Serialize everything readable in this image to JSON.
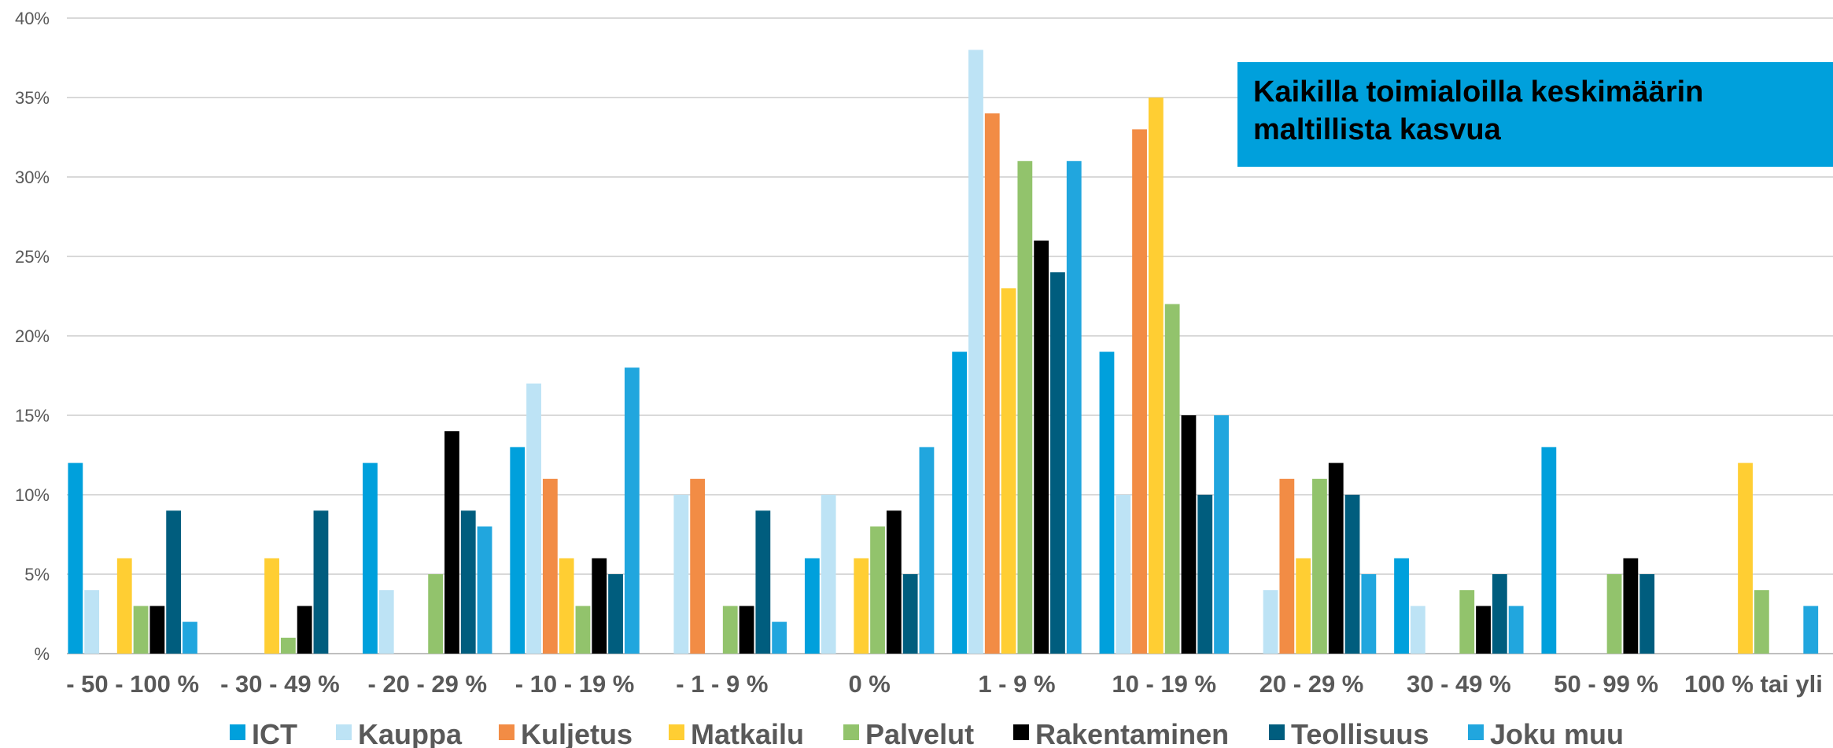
{
  "callout": {
    "text": "Kaikilla toimialoilla keskimäärin maltillista kasvua",
    "color": "#00A0DC"
  },
  "chart_data": {
    "type": "bar",
    "title": "",
    "xlabel": "",
    "ylabel": "",
    "ylim": [
      0,
      40
    ],
    "yticks": [
      0,
      5,
      10,
      15,
      20,
      25,
      30,
      35,
      40
    ],
    "ytick_labels": [
      "%",
      "5%",
      "10%",
      "15%",
      "20%",
      "25%",
      "30%",
      "35%",
      "40%"
    ],
    "grid": true,
    "legend_position": "bottom",
    "categories": [
      "- 50 - 100 %",
      "- 30 - 49 %",
      "- 20 - 29 %",
      "- 10 - 19 %",
      "- 1 - 9 %",
      "0 %",
      "1 - 9 %",
      "10 - 19 %",
      "20 - 29 %",
      "30 - 49 %",
      "50 - 99 %",
      "100 % tai yli"
    ],
    "series": [
      {
        "name": "ICT",
        "color": "#00A0DC",
        "values": [
          12,
          0,
          12,
          13,
          0,
          6,
          19,
          19,
          0,
          6,
          13,
          0
        ]
      },
      {
        "name": "Kauppa",
        "color": "#BDE3F5",
        "values": [
          4,
          0,
          4,
          17,
          10,
          10,
          38,
          10,
          4,
          3,
          0,
          0
        ]
      },
      {
        "name": "Kuljetus",
        "color": "#F28C45",
        "values": [
          0,
          0,
          0,
          11,
          11,
          0,
          34,
          33,
          11,
          0,
          0,
          0
        ]
      },
      {
        "name": "Matkailu",
        "color": "#FFCE33",
        "values": [
          6,
          6,
          0,
          6,
          0,
          6,
          23,
          35,
          6,
          0,
          0,
          12
        ]
      },
      {
        "name": "Palvelut",
        "color": "#92C36C",
        "values": [
          3,
          1,
          5,
          3,
          3,
          8,
          31,
          22,
          11,
          4,
          5,
          4
        ]
      },
      {
        "name": "Rakentaminen",
        "color": "#000000",
        "values": [
          3,
          3,
          14,
          6,
          3,
          9,
          26,
          15,
          12,
          3,
          6,
          0
        ]
      },
      {
        "name": "Teollisuus",
        "color": "#005D7E",
        "values": [
          9,
          9,
          9,
          5,
          9,
          5,
          24,
          10,
          10,
          5,
          5,
          0
        ]
      },
      {
        "name": "Joku muu",
        "color": "#21A6DE",
        "values": [
          2,
          0,
          8,
          18,
          2,
          13,
          31,
          15,
          5,
          3,
          0,
          3
        ]
      }
    ]
  }
}
